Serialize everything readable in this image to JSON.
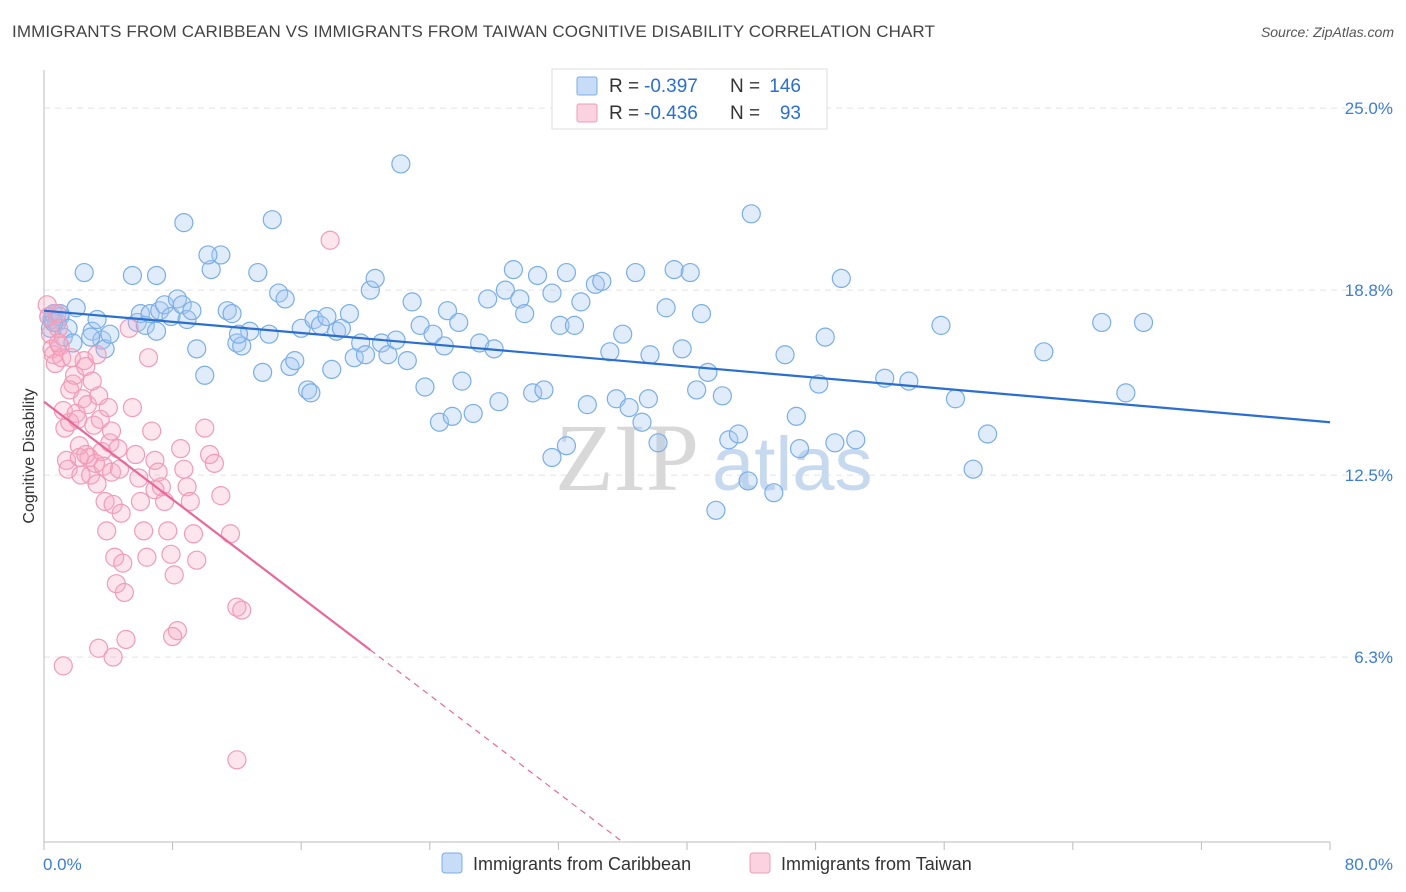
{
  "header": {
    "title": "IMMIGRANTS FROM CARIBBEAN VS IMMIGRANTS FROM TAIWAN COGNITIVE DISABILITY CORRELATION CHART",
    "source": "Source: ZipAtlas.com"
  },
  "watermark": {
    "zip": "ZIP",
    "atlas": "atlas"
  },
  "legend_box": {
    "rows": [
      {
        "r_label": "R =",
        "r_value": "-0.397",
        "n_label": "N =",
        "n_value": "146",
        "color": "#7aaee8"
      },
      {
        "r_label": "R =",
        "r_value": "-0.436",
        "n_label": "N =",
        "n_value": "93",
        "color": "#f29bb8"
      }
    ]
  },
  "bottom_legend": [
    {
      "label": "Immigrants from Caribbean",
      "color": "#7aaee8"
    },
    {
      "label": "Immigrants from Taiwan",
      "color": "#f29bb8"
    }
  ],
  "chart_data": {
    "type": "scatter",
    "xlabel": "",
    "ylabel": "Cognitive Disability",
    "xlim": [
      0,
      80
    ],
    "ylim": [
      0,
      26.3
    ],
    "x_tick_labels": [
      "0.0%",
      "80.0%"
    ],
    "y_tick_labels": [
      "25.0%",
      "18.8%",
      "12.5%",
      "6.3%"
    ],
    "y_ticks": [
      25.0,
      18.8,
      12.5,
      6.3
    ],
    "grid": "horizontal dashed",
    "legend_position": "top-center",
    "series": [
      {
        "name": "Immigrants from Caribbean",
        "color": "#7aaee8",
        "line_color": "#2a6fcf",
        "trend": {
          "x": [
            0,
            80
          ],
          "y": [
            18.1,
            14.3
          ],
          "dashed_from": null
        },
        "points": [
          [
            0.3,
            17.9
          ],
          [
            0.4,
            17.5
          ],
          [
            0.5,
            17.8
          ],
          [
            0.6,
            18.0
          ],
          [
            0.8,
            17.7
          ],
          [
            1.0,
            17.9
          ],
          [
            1.2,
            17.2
          ],
          [
            1.5,
            17.5
          ],
          [
            1.8,
            17.0
          ],
          [
            2.0,
            18.2
          ],
          [
            2.5,
            19.4
          ],
          [
            3.0,
            17.4
          ],
          [
            3.3,
            17.8
          ],
          [
            3.6,
            17.1
          ],
          [
            3.8,
            16.8
          ],
          [
            4.1,
            17.3
          ],
          [
            5.5,
            19.3
          ],
          [
            5.8,
            17.7
          ],
          [
            6.0,
            18.0
          ],
          [
            6.3,
            17.6
          ],
          [
            6.6,
            18.0
          ],
          [
            7.0,
            17.4
          ],
          [
            7.2,
            18.1
          ],
          [
            7.5,
            18.3
          ],
          [
            7.9,
            17.9
          ],
          [
            8.3,
            18.5
          ],
          [
            8.6,
            18.3
          ],
          [
            8.9,
            17.8
          ],
          [
            9.2,
            18.1
          ],
          [
            9.5,
            16.8
          ],
          [
            10.0,
            15.9
          ],
          [
            10.4,
            19.5
          ],
          [
            11.0,
            20.0
          ],
          [
            11.4,
            18.1
          ],
          [
            11.7,
            18.0
          ],
          [
            12.0,
            17.0
          ],
          [
            12.3,
            16.9
          ],
          [
            12.8,
            17.4
          ],
          [
            13.3,
            19.4
          ],
          [
            13.6,
            16.0
          ],
          [
            14.0,
            17.3
          ],
          [
            14.6,
            18.7
          ],
          [
            15.0,
            18.5
          ],
          [
            15.3,
            16.2
          ],
          [
            15.6,
            16.4
          ],
          [
            16.0,
            17.5
          ],
          [
            16.4,
            15.4
          ],
          [
            16.8,
            17.8
          ],
          [
            17.2,
            17.6
          ],
          [
            17.6,
            17.9
          ],
          [
            17.9,
            16.1
          ],
          [
            18.2,
            17.4
          ],
          [
            18.5,
            17.5
          ],
          [
            19.0,
            18.0
          ],
          [
            19.3,
            16.5
          ],
          [
            19.7,
            17.0
          ],
          [
            20.0,
            16.6
          ],
          [
            20.3,
            18.8
          ],
          [
            20.6,
            19.2
          ],
          [
            21.0,
            17.0
          ],
          [
            21.4,
            16.6
          ],
          [
            21.9,
            17.1
          ],
          [
            22.6,
            16.4
          ],
          [
            22.9,
            18.4
          ],
          [
            23.4,
            17.6
          ],
          [
            23.7,
            15.5
          ],
          [
            24.2,
            17.3
          ],
          [
            24.6,
            14.3
          ],
          [
            25.1,
            18.1
          ],
          [
            25.4,
            14.5
          ],
          [
            25.8,
            17.7
          ],
          [
            26.0,
            15.7
          ],
          [
            26.7,
            14.6
          ],
          [
            27.1,
            17.0
          ],
          [
            27.6,
            18.5
          ],
          [
            28.0,
            16.8
          ],
          [
            28.3,
            15.0
          ],
          [
            28.7,
            18.8
          ],
          [
            29.2,
            19.5
          ],
          [
            29.6,
            18.5
          ],
          [
            29.9,
            18.0
          ],
          [
            30.4,
            15.3
          ],
          [
            30.7,
            19.3
          ],
          [
            31.1,
            15.4
          ],
          [
            31.6,
            18.7
          ],
          [
            32.1,
            17.6
          ],
          [
            32.5,
            19.4
          ],
          [
            33.0,
            17.6
          ],
          [
            33.4,
            18.4
          ],
          [
            33.8,
            14.9
          ],
          [
            34.3,
            19.0
          ],
          [
            34.7,
            19.1
          ],
          [
            35.2,
            16.7
          ],
          [
            35.6,
            15.1
          ],
          [
            36.0,
            17.3
          ],
          [
            36.4,
            14.8
          ],
          [
            36.8,
            19.4
          ],
          [
            37.2,
            14.3
          ],
          [
            37.7,
            16.6
          ],
          [
            38.2,
            13.6
          ],
          [
            38.7,
            18.2
          ],
          [
            39.2,
            19.5
          ],
          [
            39.7,
            16.8
          ],
          [
            40.2,
            19.4
          ],
          [
            40.6,
            15.4
          ],
          [
            40.9,
            18.0
          ],
          [
            41.3,
            16.0
          ],
          [
            41.8,
            11.3
          ],
          [
            42.2,
            15.2
          ],
          [
            42.6,
            13.7
          ],
          [
            43.2,
            13.9
          ],
          [
            43.8,
            12.3
          ],
          [
            44.0,
            21.4
          ],
          [
            45.4,
            11.9
          ],
          [
            46.1,
            16.6
          ],
          [
            46.8,
            14.5
          ],
          [
            47.0,
            13.4
          ],
          [
            48.2,
            15.6
          ],
          [
            48.6,
            17.2
          ],
          [
            49.2,
            13.6
          ],
          [
            49.6,
            19.2
          ],
          [
            50.5,
            13.7
          ],
          [
            52.3,
            15.8
          ],
          [
            53.8,
            15.7
          ],
          [
            55.8,
            17.6
          ],
          [
            56.7,
            15.1
          ],
          [
            57.8,
            12.7
          ],
          [
            58.7,
            13.9
          ],
          [
            62.2,
            16.7
          ],
          [
            65.8,
            17.7
          ],
          [
            67.3,
            15.3
          ],
          [
            68.4,
            17.7
          ],
          [
            22.2,
            23.1
          ],
          [
            8.7,
            21.1
          ],
          [
            14.2,
            21.2
          ],
          [
            0.6,
            17.7
          ],
          [
            1.0,
            18.0
          ],
          [
            2.9,
            17.2
          ],
          [
            7.0,
            19.3
          ],
          [
            16.6,
            15.3
          ],
          [
            31.6,
            13.1
          ],
          [
            24.9,
            16.9
          ],
          [
            12.1,
            17.3
          ],
          [
            10.2,
            20.0
          ],
          [
            32.5,
            13.5
          ],
          [
            37.6,
            15.1
          ]
        ]
      },
      {
        "name": "Immigrants from Taiwan",
        "color": "#f29bb8",
        "line_color": "#e8689a",
        "trend": {
          "x": [
            0,
            36
          ],
          "y": [
            15.0,
            0.0
          ],
          "solid_until_x": 20.3
        },
        "points": [
          [
            0.2,
            18.3
          ],
          [
            0.3,
            17.9
          ],
          [
            0.4,
            17.3
          ],
          [
            0.5,
            16.8
          ],
          [
            0.6,
            16.6
          ],
          [
            0.7,
            16.3
          ],
          [
            0.8,
            18.0
          ],
          [
            0.9,
            17.5
          ],
          [
            1.0,
            16.9
          ],
          [
            1.1,
            16.5
          ],
          [
            1.2,
            14.7
          ],
          [
            1.3,
            14.1
          ],
          [
            1.4,
            13.0
          ],
          [
            1.5,
            12.7
          ],
          [
            1.6,
            14.3
          ],
          [
            1.7,
            16.5
          ],
          [
            1.8,
            15.6
          ],
          [
            1.9,
            15.9
          ],
          [
            2.0,
            14.6
          ],
          [
            2.1,
            14.4
          ],
          [
            2.2,
            13.5
          ],
          [
            2.3,
            12.5
          ],
          [
            2.4,
            15.1
          ],
          [
            2.5,
            16.4
          ],
          [
            2.6,
            16.2
          ],
          [
            2.7,
            14.9
          ],
          [
            2.8,
            13.1
          ],
          [
            2.9,
            12.5
          ],
          [
            3.0,
            15.7
          ],
          [
            3.1,
            14.2
          ],
          [
            3.2,
            12.9
          ],
          [
            3.3,
            12.2
          ],
          [
            3.4,
            15.2
          ],
          [
            3.5,
            14.4
          ],
          [
            3.6,
            13.3
          ],
          [
            3.7,
            12.8
          ],
          [
            3.8,
            11.6
          ],
          [
            3.9,
            10.6
          ],
          [
            4.0,
            14.8
          ],
          [
            4.1,
            13.6
          ],
          [
            4.2,
            12.6
          ],
          [
            4.3,
            11.5
          ],
          [
            4.4,
            9.7
          ],
          [
            4.5,
            8.8
          ],
          [
            4.6,
            13.4
          ],
          [
            4.7,
            12.7
          ],
          [
            4.8,
            11.2
          ],
          [
            4.9,
            9.5
          ],
          [
            5.0,
            8.5
          ],
          [
            5.1,
            6.9
          ],
          [
            5.3,
            17.5
          ],
          [
            5.5,
            14.8
          ],
          [
            5.7,
            13.2
          ],
          [
            5.9,
            12.4
          ],
          [
            6.0,
            11.6
          ],
          [
            6.2,
            10.6
          ],
          [
            6.4,
            9.7
          ],
          [
            6.5,
            16.5
          ],
          [
            6.7,
            14.0
          ],
          [
            6.9,
            13.0
          ],
          [
            7.1,
            12.6
          ],
          [
            7.3,
            12.1
          ],
          [
            7.5,
            11.6
          ],
          [
            7.7,
            10.6
          ],
          [
            7.9,
            9.8
          ],
          [
            8.1,
            9.1
          ],
          [
            8.3,
            7.2
          ],
          [
            8.5,
            13.4
          ],
          [
            8.7,
            12.7
          ],
          [
            8.9,
            12.1
          ],
          [
            9.1,
            11.6
          ],
          [
            9.3,
            10.5
          ],
          [
            9.5,
            9.6
          ],
          [
            10.0,
            14.1
          ],
          [
            10.3,
            13.2
          ],
          [
            10.6,
            12.9
          ],
          [
            11.0,
            11.8
          ],
          [
            11.6,
            10.5
          ],
          [
            12.0,
            8.0
          ],
          [
            12.3,
            7.9
          ],
          [
            1.2,
            6.0
          ],
          [
            3.4,
            6.6
          ],
          [
            8.0,
            7.0
          ],
          [
            4.3,
            6.3
          ],
          [
            2.2,
            13.1
          ],
          [
            3.3,
            16.6
          ],
          [
            12.0,
            2.8
          ],
          [
            17.8,
            20.5
          ],
          [
            0.9,
            17.0
          ],
          [
            1.6,
            15.4
          ],
          [
            2.6,
            13.2
          ],
          [
            4.2,
            14.0
          ],
          [
            6.9,
            12.0
          ]
        ]
      }
    ]
  }
}
